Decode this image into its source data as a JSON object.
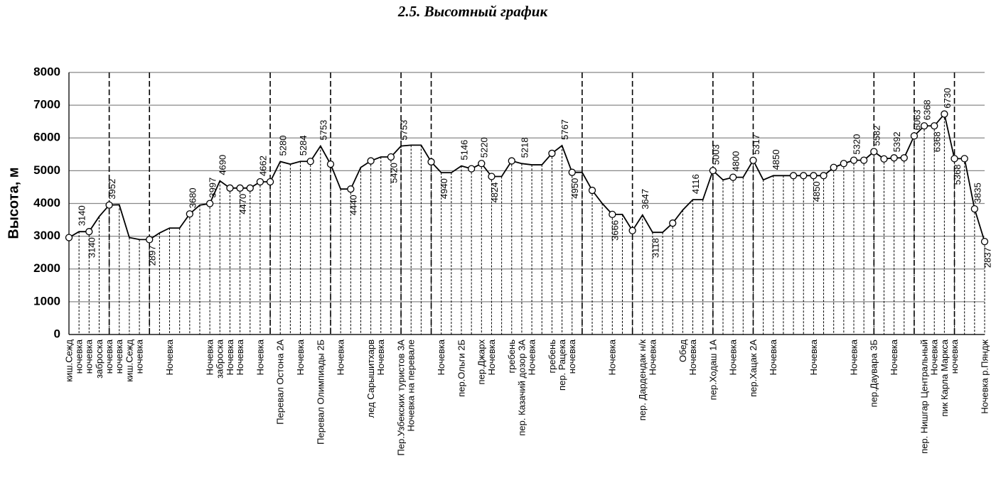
{
  "chart_data": {
    "type": "line",
    "title": "2.5. Высотный график",
    "y_label": "Высота, м",
    "ylim": [
      0,
      8000
    ],
    "yticks": [
      0,
      1000,
      2000,
      3000,
      4000,
      5000,
      6000,
      7000,
      8000
    ],
    "grid": true,
    "color": "#000000",
    "categories": [
      "киш.Сежд",
      "ночевка",
      "ночевка",
      "заброска",
      "ночевка",
      "ночевка",
      "киш.Сежд",
      "ночевка",
      null,
      null,
      "Ночевка",
      null,
      null,
      null,
      "Ночевка",
      "заброска",
      "Ночевка",
      "Ночевка",
      null,
      "Ночевка",
      null,
      "Перевал Остона 2А",
      null,
      "Ночевка",
      null,
      "Перевал Олимпиады 2Б",
      null,
      "Ночевка",
      null,
      null,
      "лед Сарышитхарв",
      "Ночевка",
      null,
      "Пер.Узбекских туристов 3А",
      "Ночевка на перевале",
      null,
      null,
      "Ночевка",
      null,
      "пер.Ольги 2Б",
      null,
      "пер.Джарх",
      "Ночевка",
      null,
      "гребень",
      "пер. Казачий дозор 3А",
      "Ночевка",
      null,
      "гребень",
      "пер. Рацека",
      "ночевка",
      null,
      null,
      null,
      "Ночевка",
      null,
      null,
      "пер. Дардендак н/к",
      "Ночевка",
      null,
      null,
      "Обед",
      "Ночевка",
      null,
      "пер.Ходаш 1А",
      null,
      "Ночевка",
      null,
      "пер.Хацак 2А",
      null,
      "Ночевка",
      null,
      null,
      null,
      "Ночевка",
      null,
      null,
      null,
      "Ночевка",
      null,
      "пер.Даувара 3Б",
      null,
      "Ночевка",
      null,
      null,
      "пер. Нишгар Центральный",
      "Ночевка",
      "пик Карла Маркса",
      "ночевка",
      null,
      null,
      "Ночевка р.Пяндж"
    ],
    "values": [
      2960,
      3140,
      3140,
      3600,
      3952,
      3960,
      2960,
      2900,
      2897,
      3100,
      3250,
      3250,
      3680,
      3950,
      3997,
      4690,
      4470,
      4470,
      4470,
      4662,
      4662,
      5280,
      5200,
      5284,
      5284,
      5753,
      5200,
      4440,
      4440,
      5100,
      5300,
      5420,
      5420,
      5753,
      5780,
      5780,
      5270,
      4940,
      4940,
      5146,
      5060,
      5220,
      4824,
      4824,
      5300,
      5218,
      5180,
      5180,
      5530,
      5767,
      4950,
      4950,
      4400,
      4000,
      3666,
      3666,
      3170,
      3647,
      3118,
      3118,
      3400,
      3800,
      4116,
      4116,
      5003,
      4720,
      4800,
      4800,
      5317,
      4720,
      4850,
      4850,
      4850,
      4850,
      4850,
      4850,
      5100,
      5220,
      5320,
      5320,
      5582,
      5360,
      5392,
      5392,
      6063,
      6368,
      6368,
      6730,
      5368,
      5368,
      3835,
      2837
    ],
    "markers": [
      true,
      false,
      true,
      false,
      true,
      false,
      false,
      false,
      true,
      false,
      false,
      false,
      true,
      false,
      true,
      false,
      true,
      true,
      true,
      true,
      true,
      false,
      false,
      false,
      true,
      false,
      true,
      false,
      true,
      false,
      true,
      false,
      true,
      false,
      false,
      false,
      true,
      false,
      false,
      false,
      true,
      true,
      true,
      false,
      true,
      false,
      false,
      false,
      true,
      false,
      true,
      false,
      true,
      false,
      true,
      false,
      true,
      false,
      false,
      false,
      true,
      false,
      false,
      false,
      true,
      false,
      true,
      false,
      true,
      false,
      false,
      false,
      true,
      true,
      true,
      true,
      true,
      true,
      true,
      true,
      true,
      true,
      true,
      true,
      true,
      true,
      true,
      true,
      true,
      true,
      true,
      true
    ],
    "show_labels": [
      false,
      true,
      true,
      false,
      true,
      false,
      false,
      false,
      true,
      false,
      false,
      false,
      true,
      false,
      true,
      true,
      false,
      true,
      false,
      true,
      false,
      true,
      false,
      true,
      false,
      true,
      false,
      false,
      true,
      false,
      false,
      false,
      true,
      true,
      false,
      false,
      false,
      true,
      false,
      true,
      false,
      true,
      true,
      false,
      false,
      true,
      false,
      false,
      false,
      true,
      true,
      false,
      false,
      false,
      true,
      false,
      false,
      true,
      true,
      false,
      false,
      false,
      true,
      false,
      true,
      false,
      true,
      false,
      true,
      false,
      true,
      false,
      false,
      false,
      true,
      false,
      false,
      false,
      true,
      false,
      true,
      false,
      true,
      false,
      true,
      true,
      true,
      true,
      true,
      false,
      true,
      true
    ]
  }
}
